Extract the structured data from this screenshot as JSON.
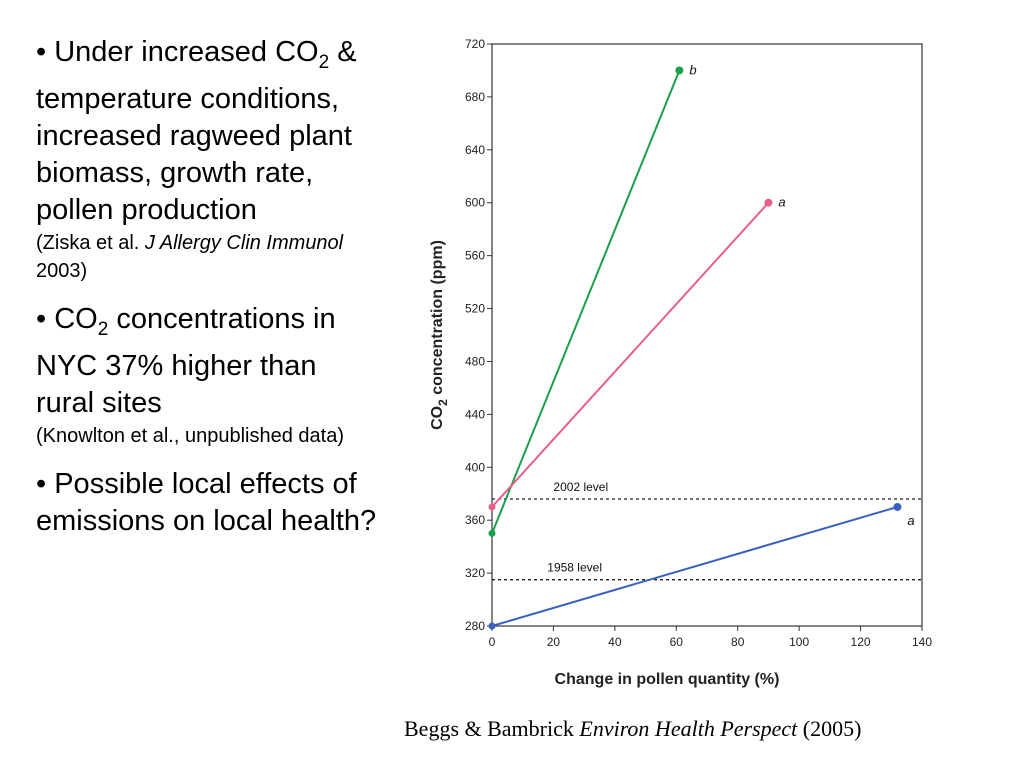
{
  "bullets": [
    {
      "lead": "Under increased ",
      "co2_base": "CO",
      "co2_sub": "2",
      "tail": " & temperature conditions, increased ragweed plant biomass, growth rate, pollen production",
      "cite_a": "(Ziska et al. ",
      "cite_italic": "J Allergy Clin Immunol",
      "cite_b": " 2003)"
    },
    {
      "lead": "",
      "co2_base": "CO",
      "co2_sub": "2",
      "tail": " concentrations in NYC 37% higher than rural sites",
      "cite_a": "(Knowlton et al., unpublished data)",
      "cite_italic": "",
      "cite_b": ""
    },
    {
      "lead": "Possible local effects of emissions on local health?",
      "co2_base": "",
      "co2_sub": "",
      "tail": "",
      "cite_a": "",
      "cite_italic": "",
      "cite_b": ""
    }
  ],
  "bullet_symbol": "•",
  "caption": {
    "authors": "Beggs & Bambrick ",
    "journal": "Environ Health Perspect",
    "year": " (2005)"
  },
  "chart_data": {
    "type": "line",
    "xlabel": "Change in pollen quantity (%)",
    "ylabel_base": "CO",
    "ylabel_sub": "2",
    "ylabel_rest": " concentration (ppm)",
    "xlim": [
      0,
      140
    ],
    "ylim": [
      280,
      720
    ],
    "xticks": [
      0,
      20,
      40,
      60,
      80,
      100,
      120,
      140
    ],
    "yticks": [
      280,
      320,
      360,
      400,
      440,
      480,
      520,
      560,
      600,
      640,
      680,
      720
    ],
    "grid": false,
    "series": [
      {
        "name": "",
        "label": "b",
        "color": "#1aa04a",
        "points": [
          [
            0,
            350
          ],
          [
            61,
            700
          ]
        ]
      },
      {
        "name": "",
        "label": "a",
        "color": "#e8608a",
        "points": [
          [
            0,
            370
          ],
          [
            90,
            600
          ]
        ]
      },
      {
        "name": "",
        "label": "a",
        "color": "#3a5fc0",
        "points": [
          [
            0,
            280
          ],
          [
            132,
            370
          ]
        ]
      }
    ],
    "reference_lines": [
      {
        "label": "2002 level",
        "y": 376
      },
      {
        "label": "1958 level",
        "y": 315
      }
    ]
  }
}
